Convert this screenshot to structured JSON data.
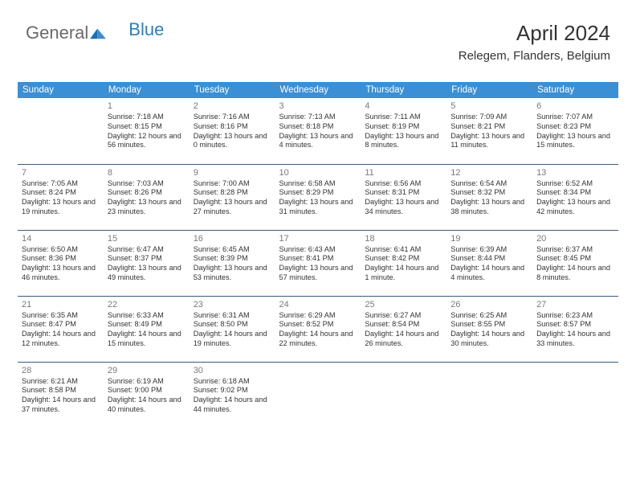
{
  "logo": {
    "text1": "General",
    "text2": "Blue"
  },
  "title": "April 2024",
  "location": "Relegem, Flanders, Belgium",
  "colors": {
    "header_bg": "#3b8fd4",
    "header_fg": "#ffffff",
    "rule": "#3b5c7a",
    "text": "#333333",
    "daynum": "#7a7a7a",
    "logo_gray": "#6a6a6a",
    "logo_blue": "#2a7fbf",
    "page_bg": "#ffffff"
  },
  "typography": {
    "title_fontsize": 26,
    "location_fontsize": 15,
    "dayheader_fontsize": 11.5,
    "daynum_fontsize": 11,
    "cell_fontsize": 9.2
  },
  "days": [
    "Sunday",
    "Monday",
    "Tuesday",
    "Wednesday",
    "Thursday",
    "Friday",
    "Saturday"
  ],
  "weeks": [
    [
      null,
      {
        "n": "1",
        "sr": "7:18 AM",
        "ss": "8:15 PM",
        "dl": "12 hours and 56 minutes."
      },
      {
        "n": "2",
        "sr": "7:16 AM",
        "ss": "8:16 PM",
        "dl": "13 hours and 0 minutes."
      },
      {
        "n": "3",
        "sr": "7:13 AM",
        "ss": "8:18 PM",
        "dl": "13 hours and 4 minutes."
      },
      {
        "n": "4",
        "sr": "7:11 AM",
        "ss": "8:19 PM",
        "dl": "13 hours and 8 minutes."
      },
      {
        "n": "5",
        "sr": "7:09 AM",
        "ss": "8:21 PM",
        "dl": "13 hours and 11 minutes."
      },
      {
        "n": "6",
        "sr": "7:07 AM",
        "ss": "8:23 PM",
        "dl": "13 hours and 15 minutes."
      }
    ],
    [
      {
        "n": "7",
        "sr": "7:05 AM",
        "ss": "8:24 PM",
        "dl": "13 hours and 19 minutes."
      },
      {
        "n": "8",
        "sr": "7:03 AM",
        "ss": "8:26 PM",
        "dl": "13 hours and 23 minutes."
      },
      {
        "n": "9",
        "sr": "7:00 AM",
        "ss": "8:28 PM",
        "dl": "13 hours and 27 minutes."
      },
      {
        "n": "10",
        "sr": "6:58 AM",
        "ss": "8:29 PM",
        "dl": "13 hours and 31 minutes."
      },
      {
        "n": "11",
        "sr": "6:56 AM",
        "ss": "8:31 PM",
        "dl": "13 hours and 34 minutes."
      },
      {
        "n": "12",
        "sr": "6:54 AM",
        "ss": "8:32 PM",
        "dl": "13 hours and 38 minutes."
      },
      {
        "n": "13",
        "sr": "6:52 AM",
        "ss": "8:34 PM",
        "dl": "13 hours and 42 minutes."
      }
    ],
    [
      {
        "n": "14",
        "sr": "6:50 AM",
        "ss": "8:36 PM",
        "dl": "13 hours and 46 minutes."
      },
      {
        "n": "15",
        "sr": "6:47 AM",
        "ss": "8:37 PM",
        "dl": "13 hours and 49 minutes."
      },
      {
        "n": "16",
        "sr": "6:45 AM",
        "ss": "8:39 PM",
        "dl": "13 hours and 53 minutes."
      },
      {
        "n": "17",
        "sr": "6:43 AM",
        "ss": "8:41 PM",
        "dl": "13 hours and 57 minutes."
      },
      {
        "n": "18",
        "sr": "6:41 AM",
        "ss": "8:42 PM",
        "dl": "14 hours and 1 minute."
      },
      {
        "n": "19",
        "sr": "6:39 AM",
        "ss": "8:44 PM",
        "dl": "14 hours and 4 minutes."
      },
      {
        "n": "20",
        "sr": "6:37 AM",
        "ss": "8:45 PM",
        "dl": "14 hours and 8 minutes."
      }
    ],
    [
      {
        "n": "21",
        "sr": "6:35 AM",
        "ss": "8:47 PM",
        "dl": "14 hours and 12 minutes."
      },
      {
        "n": "22",
        "sr": "6:33 AM",
        "ss": "8:49 PM",
        "dl": "14 hours and 15 minutes."
      },
      {
        "n": "23",
        "sr": "6:31 AM",
        "ss": "8:50 PM",
        "dl": "14 hours and 19 minutes."
      },
      {
        "n": "24",
        "sr": "6:29 AM",
        "ss": "8:52 PM",
        "dl": "14 hours and 22 minutes."
      },
      {
        "n": "25",
        "sr": "6:27 AM",
        "ss": "8:54 PM",
        "dl": "14 hours and 26 minutes."
      },
      {
        "n": "26",
        "sr": "6:25 AM",
        "ss": "8:55 PM",
        "dl": "14 hours and 30 minutes."
      },
      {
        "n": "27",
        "sr": "6:23 AM",
        "ss": "8:57 PM",
        "dl": "14 hours and 33 minutes."
      }
    ],
    [
      {
        "n": "28",
        "sr": "6:21 AM",
        "ss": "8:58 PM",
        "dl": "14 hours and 37 minutes."
      },
      {
        "n": "29",
        "sr": "6:19 AM",
        "ss": "9:00 PM",
        "dl": "14 hours and 40 minutes."
      },
      {
        "n": "30",
        "sr": "6:18 AM",
        "ss": "9:02 PM",
        "dl": "14 hours and 44 minutes."
      },
      null,
      null,
      null,
      null
    ]
  ],
  "labels": {
    "sunrise": "Sunrise: ",
    "sunset": "Sunset: ",
    "daylight": "Daylight: "
  }
}
